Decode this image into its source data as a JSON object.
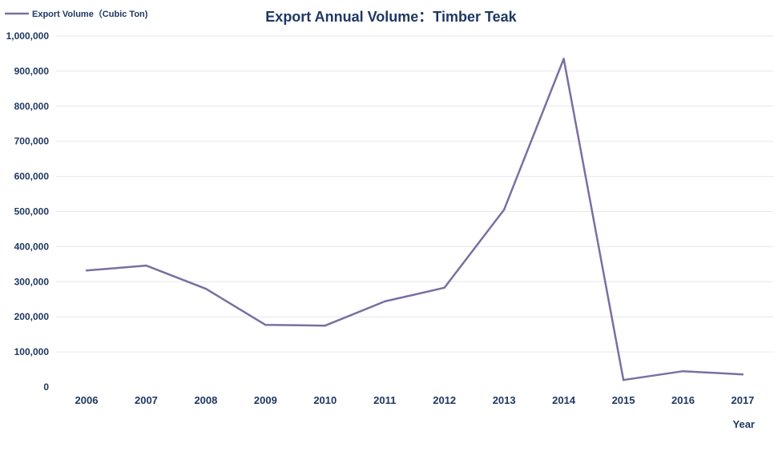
{
  "colors": {
    "series": "#7b6fa0",
    "text": "#1f3864",
    "grid": "#e6e6ee",
    "background": "#ffffff"
  },
  "chart_data": {
    "type": "line",
    "title": "Export Annual Volume：Timber Teak",
    "xlabel": "Year",
    "ylabel": "",
    "categories": [
      "2006",
      "2007",
      "2008",
      "2009",
      "2010",
      "2011",
      "2012",
      "2013",
      "2014",
      "2015",
      "2016",
      "2017"
    ],
    "series": [
      {
        "name": "Export Volume（Cubic Ton)",
        "values": [
          332000,
          346000,
          280000,
          177000,
          175000,
          244000,
          283000,
          505000,
          935000,
          20000,
          45000,
          36000
        ]
      }
    ],
    "ylim": [
      0,
      1000000
    ],
    "yticks": [
      0,
      100000,
      200000,
      300000,
      400000,
      500000,
      600000,
      700000,
      800000,
      900000,
      1000000
    ],
    "ytick_labels": [
      "0",
      "100,000",
      "200,000",
      "300,000",
      "400,000",
      "500,000",
      "600,000",
      "700,000",
      "800,000",
      "900,000",
      "1,000,000"
    ],
    "grid": true,
    "legend_position": "top-left"
  }
}
